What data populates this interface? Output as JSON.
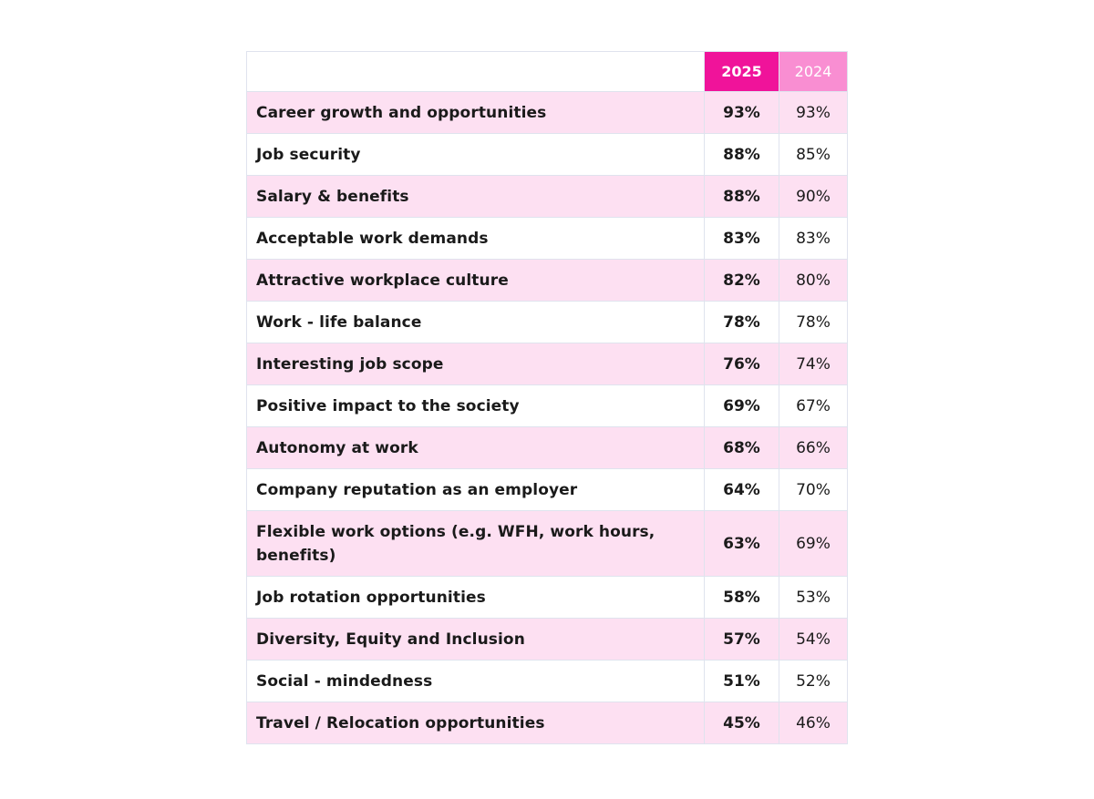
{
  "chart_data": {
    "type": "table",
    "columns": [
      "",
      "2025",
      "2024"
    ],
    "colors": {
      "header_2025": "#f0139a",
      "header_2024": "#f98ed2",
      "row_shade": "#fde0f2",
      "border": "#dfe3ee"
    },
    "rows": [
      {
        "label": "Career growth and opportunities",
        "y2025": "93%",
        "y2024": "93%"
      },
      {
        "label": "Job security",
        "y2025": "88%",
        "y2024": "85%"
      },
      {
        "label": "Salary & benefits",
        "y2025": "88%",
        "y2024": "90%"
      },
      {
        "label": "Acceptable work demands",
        "y2025": "83%",
        "y2024": "83%"
      },
      {
        "label": "Attractive workplace culture",
        "y2025": "82%",
        "y2024": "80%"
      },
      {
        "label": "Work - life balance",
        "y2025": "78%",
        "y2024": "78%"
      },
      {
        "label": "Interesting job scope",
        "y2025": "76%",
        "y2024": "74%"
      },
      {
        "label": "Positive impact to the society",
        "y2025": "69%",
        "y2024": "67%"
      },
      {
        "label": "Autonomy at work",
        "y2025": "68%",
        "y2024": "66%"
      },
      {
        "label": "Company reputation as an employer",
        "y2025": "64%",
        "y2024": "70%"
      },
      {
        "label": "Flexible work options (e.g. WFH, work hours, benefits)",
        "y2025": "63%",
        "y2024": "69%"
      },
      {
        "label": "Job rotation opportunities",
        "y2025": "58%",
        "y2024": "53%"
      },
      {
        "label": "Diversity, Equity and Inclusion",
        "y2025": "57%",
        "y2024": "54%"
      },
      {
        "label": "Social - mindedness",
        "y2025": "51%",
        "y2024": "52%"
      },
      {
        "label": "Travel / Relocation opportunities",
        "y2025": "45%",
        "y2024": "46%"
      }
    ]
  }
}
